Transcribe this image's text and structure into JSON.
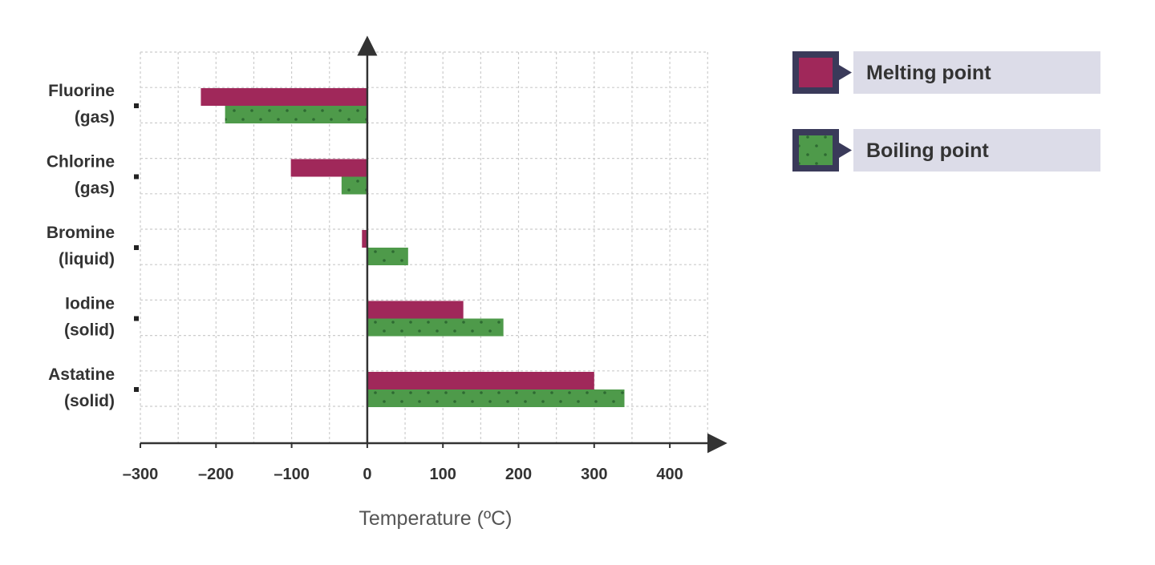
{
  "chart_data": {
    "type": "bar",
    "orientation": "horizontal",
    "title": "",
    "xlabel": "Temperature (ºC)",
    "ylabel": "",
    "categories": [
      [
        "Fluorine",
        "(gas)"
      ],
      [
        "Chlorine",
        "(gas)"
      ],
      [
        "Bromine",
        "(liquid)"
      ],
      [
        "Iodine",
        "(solid)"
      ],
      [
        "Astatine",
        "(solid)"
      ]
    ],
    "series": [
      {
        "name": "Melting point",
        "color": "#a0285a",
        "values": [
          -220,
          -101,
          -7,
          127,
          300
        ]
      },
      {
        "name": "Boiling point",
        "color": "#4e9a4a",
        "pattern": "dotted",
        "values": [
          -188,
          -34,
          54,
          180,
          340
        ]
      }
    ],
    "xlim": [
      -300,
      450
    ],
    "xticks": [
      -300,
      -200,
      -100,
      0,
      100,
      200,
      300,
      400
    ],
    "xtick_labels": [
      "–300",
      "–200",
      "–100",
      "0",
      "100",
      "200",
      "300",
      "400"
    ],
    "grid": true,
    "legend": "right"
  }
}
